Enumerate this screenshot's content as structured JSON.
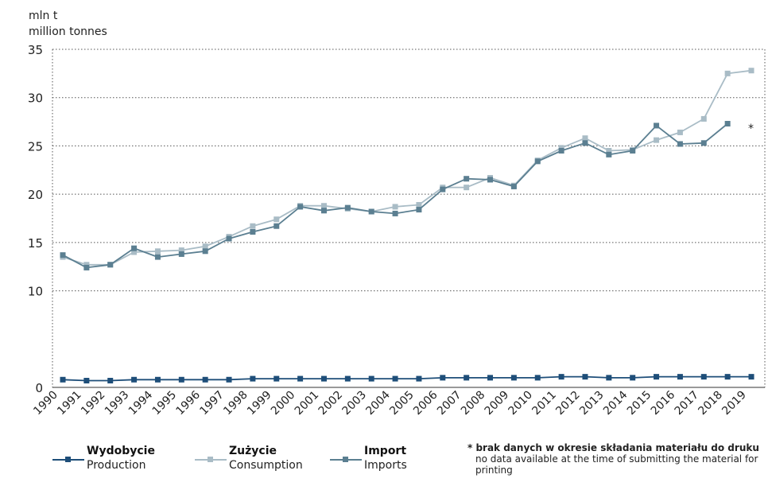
{
  "unit_pl": "mln t",
  "unit_en": "million tonnes",
  "asterisk": "*",
  "legend": [
    {
      "pl": "Wydobycie",
      "en": "Production",
      "color": "#1e4e79"
    },
    {
      "pl": "Zużycie",
      "en": "Consumption",
      "color": "#a9bcc6"
    },
    {
      "pl": "Import",
      "en": "Imports",
      "color": "#5b7f91"
    }
  ],
  "footnote": {
    "bold": "* brak danych w okresie składania materiału do druku",
    "normal": "no data available at the time of submitting the material for printing"
  },
  "chart_data": {
    "type": "line",
    "title": "",
    "xlabel": "",
    "ylabel": "mln t / million tonnes",
    "ylim": [
      0,
      35
    ],
    "yticks": [
      0,
      10,
      15,
      20,
      25,
      30,
      35
    ],
    "grid": true,
    "categories": [
      "1990",
      "1991",
      "1992",
      "1993",
      "1994",
      "1995",
      "1996",
      "1997",
      "1998",
      "1999",
      "2000",
      "2001",
      "2002",
      "2003",
      "2004",
      "2005",
      "2006",
      "2007",
      "2008",
      "2009",
      "2010",
      "2011",
      "2012",
      "2013",
      "2014",
      "2015",
      "2016",
      "2017",
      "2018",
      "2019"
    ],
    "series": [
      {
        "name": "Wydobycie / Production",
        "color": "#1e4e79",
        "values": [
          0.8,
          0.7,
          0.7,
          0.8,
          0.8,
          0.8,
          0.8,
          0.8,
          0.9,
          0.9,
          0.9,
          0.9,
          0.9,
          0.9,
          0.9,
          0.9,
          1.0,
          1.0,
          1.0,
          1.0,
          1.0,
          1.1,
          1.1,
          1.0,
          1.0,
          1.1,
          1.1,
          1.1,
          1.1,
          1.1
        ]
      },
      {
        "name": "Zużycie / Consumption",
        "color": "#a9bcc6",
        "values": [
          13.5,
          12.7,
          12.7,
          14.0,
          14.1,
          14.2,
          14.6,
          15.6,
          16.7,
          17.4,
          18.8,
          18.8,
          18.5,
          18.2,
          18.7,
          18.9,
          20.7,
          20.7,
          21.7,
          20.9,
          23.5,
          24.8,
          25.8,
          24.5,
          24.6,
          25.6,
          26.4,
          27.8,
          32.5,
          32.8
        ]
      },
      {
        "name": "Import / Imports",
        "color": "#5b7f91",
        "values": [
          13.7,
          12.4,
          12.7,
          14.4,
          13.5,
          13.8,
          14.1,
          15.4,
          16.1,
          16.7,
          18.7,
          18.3,
          18.6,
          18.2,
          18.0,
          18.4,
          20.5,
          21.6,
          21.5,
          20.8,
          23.4,
          24.5,
          25.3,
          24.1,
          24.5,
          27.1,
          25.2,
          25.3,
          27.3,
          null
        ]
      }
    ]
  }
}
